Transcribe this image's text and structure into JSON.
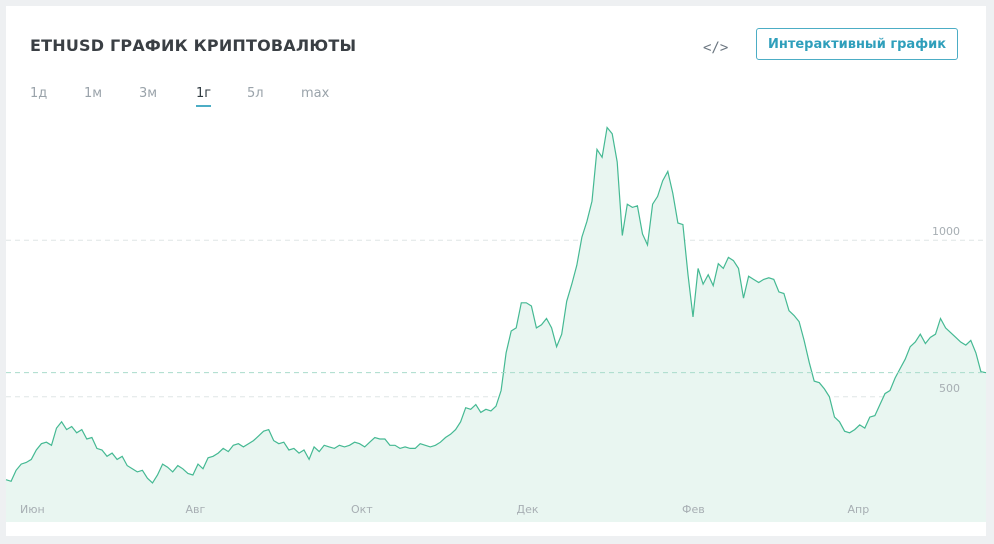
{
  "header": {
    "title": "ETHUSD ГРАФИК КРИПТОВАЛЮТЫ",
    "embed_icon": "code-embed-icon",
    "interactive_button": "Интерактивный график"
  },
  "ranges": [
    {
      "label": "1д",
      "active": false
    },
    {
      "label": "1м",
      "active": false
    },
    {
      "label": "3м",
      "active": false
    },
    {
      "label": "1г",
      "active": true
    },
    {
      "label": "5л",
      "active": false
    },
    {
      "label": "max",
      "active": false
    }
  ],
  "colors": {
    "line": "#45b993",
    "fill": "#e9f6f1",
    "accent": "#4cadc5"
  },
  "chart_data": {
    "type": "area",
    "title": "",
    "xlabel": "",
    "ylabel": "",
    "x_ticks": [
      "Июн",
      "Авг",
      "Окт",
      "Дек",
      "Фев",
      "Апр"
    ],
    "y_ticks": [
      500,
      1000
    ],
    "ylim": [
      100,
      1400
    ],
    "grid": true,
    "y_axis_position": "right",
    "current_value": 577,
    "series": [
      {
        "values": [
          235,
          230,
          265,
          285,
          290,
          300,
          330,
          350,
          355,
          345,
          400,
          420,
          395,
          405,
          385,
          395,
          365,
          370,
          335,
          330,
          310,
          320,
          300,
          310,
          280,
          270,
          260,
          265,
          240,
          225,
          250,
          285,
          275,
          260,
          280,
          270,
          255,
          250,
          285,
          270,
          305,
          310,
          320,
          335,
          325,
          345,
          350,
          340,
          350,
          360,
          375,
          390,
          395,
          360,
          350,
          355,
          330,
          335,
          320,
          330,
          300,
          340,
          325,
          345,
          340,
          335,
          345,
          340,
          345,
          355,
          350,
          340,
          355,
          370,
          365,
          365,
          345,
          345,
          335,
          340,
          335,
          335,
          350,
          345,
          340,
          345,
          355,
          370,
          380,
          395,
          420,
          465,
          460,
          475,
          450,
          460,
          455,
          470,
          520,
          640,
          710,
          720,
          800,
          800,
          790,
          720,
          730,
          750,
          720,
          660,
          700,
          805,
          860,
          920,
          1010,
          1060,
          1125,
          1290,
          1265,
          1360,
          1340,
          1250,
          1015,
          1115,
          1105,
          1110,
          1020,
          985,
          1115,
          1140,
          1190,
          1220,
          1150,
          1055,
          1050,
          890,
          755,
          910,
          860,
          890,
          855,
          925,
          910,
          945,
          935,
          910,
          815,
          885,
          875,
          865,
          875,
          880,
          875,
          835,
          830,
          775,
          760,
          740,
          680,
          610,
          550,
          545,
          525,
          500,
          435,
          420,
          390,
          385,
          395,
          410,
          400,
          435,
          440,
          475,
          510,
          520,
          560,
          590,
          620,
          660,
          675,
          700,
          670,
          690,
          700,
          750,
          720,
          705,
          690,
          675,
          665,
          680,
          640,
          580,
          577
        ]
      }
    ]
  }
}
